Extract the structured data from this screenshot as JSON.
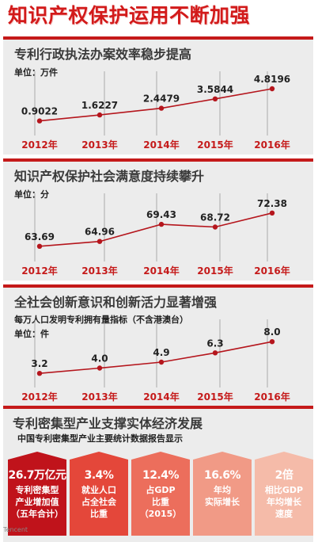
{
  "title": "知识产权保护运用不断加强",
  "colors": {
    "accent": "#c51a1a",
    "line": "#b5161d",
    "guide": "#9a9a9a",
    "panel": "#ececec",
    "year": "#c51a1a"
  },
  "panels": [
    {
      "title": "专利行政执法办案效率稳步提高",
      "unit": "单位：万件"
    },
    {
      "title": "知识产权保护社会满意度持续攀升",
      "unit": "单位：分"
    },
    {
      "title": "全社会创新意识和创新活力显著增强",
      "subtitle": "每万人口发明专利拥有量指标（不含港澳台）",
      "unit": "单位：件"
    }
  ],
  "chart_data": [
    {
      "type": "line",
      "title": "专利行政执法办案效率稳步提高",
      "ylabel": "单位：万件",
      "categories": [
        "2012年",
        "2013年",
        "2014年",
        "2015年",
        "2016年"
      ],
      "values": [
        0.9022,
        1.6227,
        2.4479,
        3.5844,
        4.8196
      ],
      "data_labels": [
        "0.9022",
        "1.6227",
        "2.4479",
        "3.5844",
        "4.8196"
      ],
      "ylim": [
        0,
        5.2
      ]
    },
    {
      "type": "line",
      "title": "知识产权保护社会满意度持续攀升",
      "ylabel": "单位：分",
      "categories": [
        "2012年",
        "2013年",
        "2014年",
        "2015年",
        "2016年"
      ],
      "values": [
        63.69,
        64.96,
        69.43,
        68.72,
        72.38
      ],
      "data_labels": [
        "63.69",
        "64.96",
        "69.43",
        "68.72",
        "72.38"
      ],
      "ylim": [
        62,
        74
      ]
    },
    {
      "type": "line",
      "title": "全社会创新意识和创新活力显著增强",
      "subtitle": "每万人口发明专利拥有量指标（不含港澳台）",
      "ylabel": "单位：件",
      "categories": [
        "2012年",
        "2013年",
        "2014年",
        "2015年",
        "2016年"
      ],
      "values": [
        3.2,
        4.0,
        4.9,
        6.3,
        8.0
      ],
      "data_labels": [
        "3.2",
        "4.0",
        "4.9",
        "6.3",
        "8.0"
      ],
      "ylim": [
        2.5,
        8.5
      ]
    }
  ],
  "bottom": {
    "title": "专利密集型产业支撑实体经济发展",
    "subtitle": "中国专利密集型产业主要统计数据报告显示",
    "stats": [
      {
        "value": "26.7万亿元",
        "desc": "专利密集型\n产业增加值\n（五年合计）",
        "color": "#c0131b"
      },
      {
        "value": "3.4%",
        "desc": "就业人口\n占全社会\n比重",
        "color": "#e4473a"
      },
      {
        "value": "12.4%",
        "desc": "占GDP\n比重\n（2015）",
        "color": "#ec6e5c"
      },
      {
        "value": "16.6%",
        "desc": "年均\n实际增长",
        "color": "#f19a86"
      },
      {
        "value": "2倍",
        "desc": "相比GDP\n年均增长\n速度",
        "color": "#f5bba9"
      }
    ]
  },
  "watermark": "Tencent"
}
